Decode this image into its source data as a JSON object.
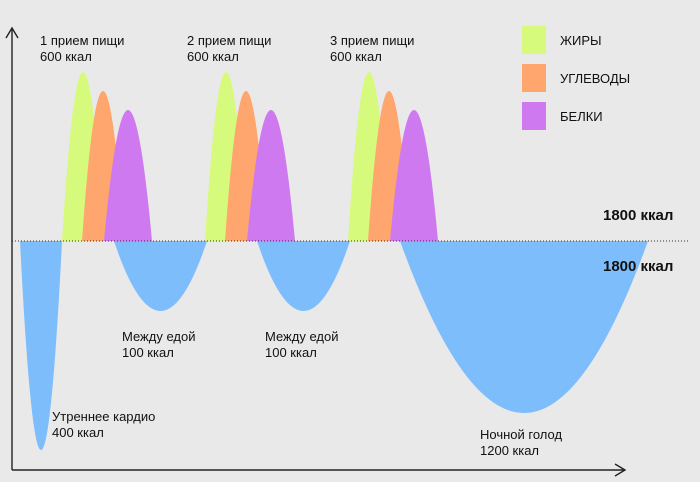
{
  "colors": {
    "fat": "#d6fb7c",
    "carbs": "#ffa56e",
    "protein": "#cf79f0",
    "expense": "#7dbdfb",
    "axis": "#222222",
    "background": "#e9e9e9"
  },
  "legend": [
    {
      "key": "fat",
      "label": "ЖИРЫ"
    },
    {
      "key": "carbs",
      "label": "УГЛЕВОДЫ"
    },
    {
      "key": "protein",
      "label": "БЕЛКИ"
    }
  ],
  "meals": [
    {
      "title": "1 прием пищи",
      "kcal": "600 ккал"
    },
    {
      "title": "2 прием пищи",
      "kcal": "600 ккал"
    },
    {
      "title": "3 прием пищи",
      "kcal": "600 ккал"
    }
  ],
  "expenses": [
    {
      "title": "Утреннее кардио",
      "kcal": "400 ккал"
    },
    {
      "title": "Между едой",
      "kcal": "100 ккал"
    },
    {
      "title": "Между едой",
      "kcal": "100 ккал"
    },
    {
      "title": "Ночной голод",
      "kcal": "1200 ккал"
    }
  ],
  "totals": {
    "intake": "1800 ккал",
    "expense": "1800 ккал"
  }
}
